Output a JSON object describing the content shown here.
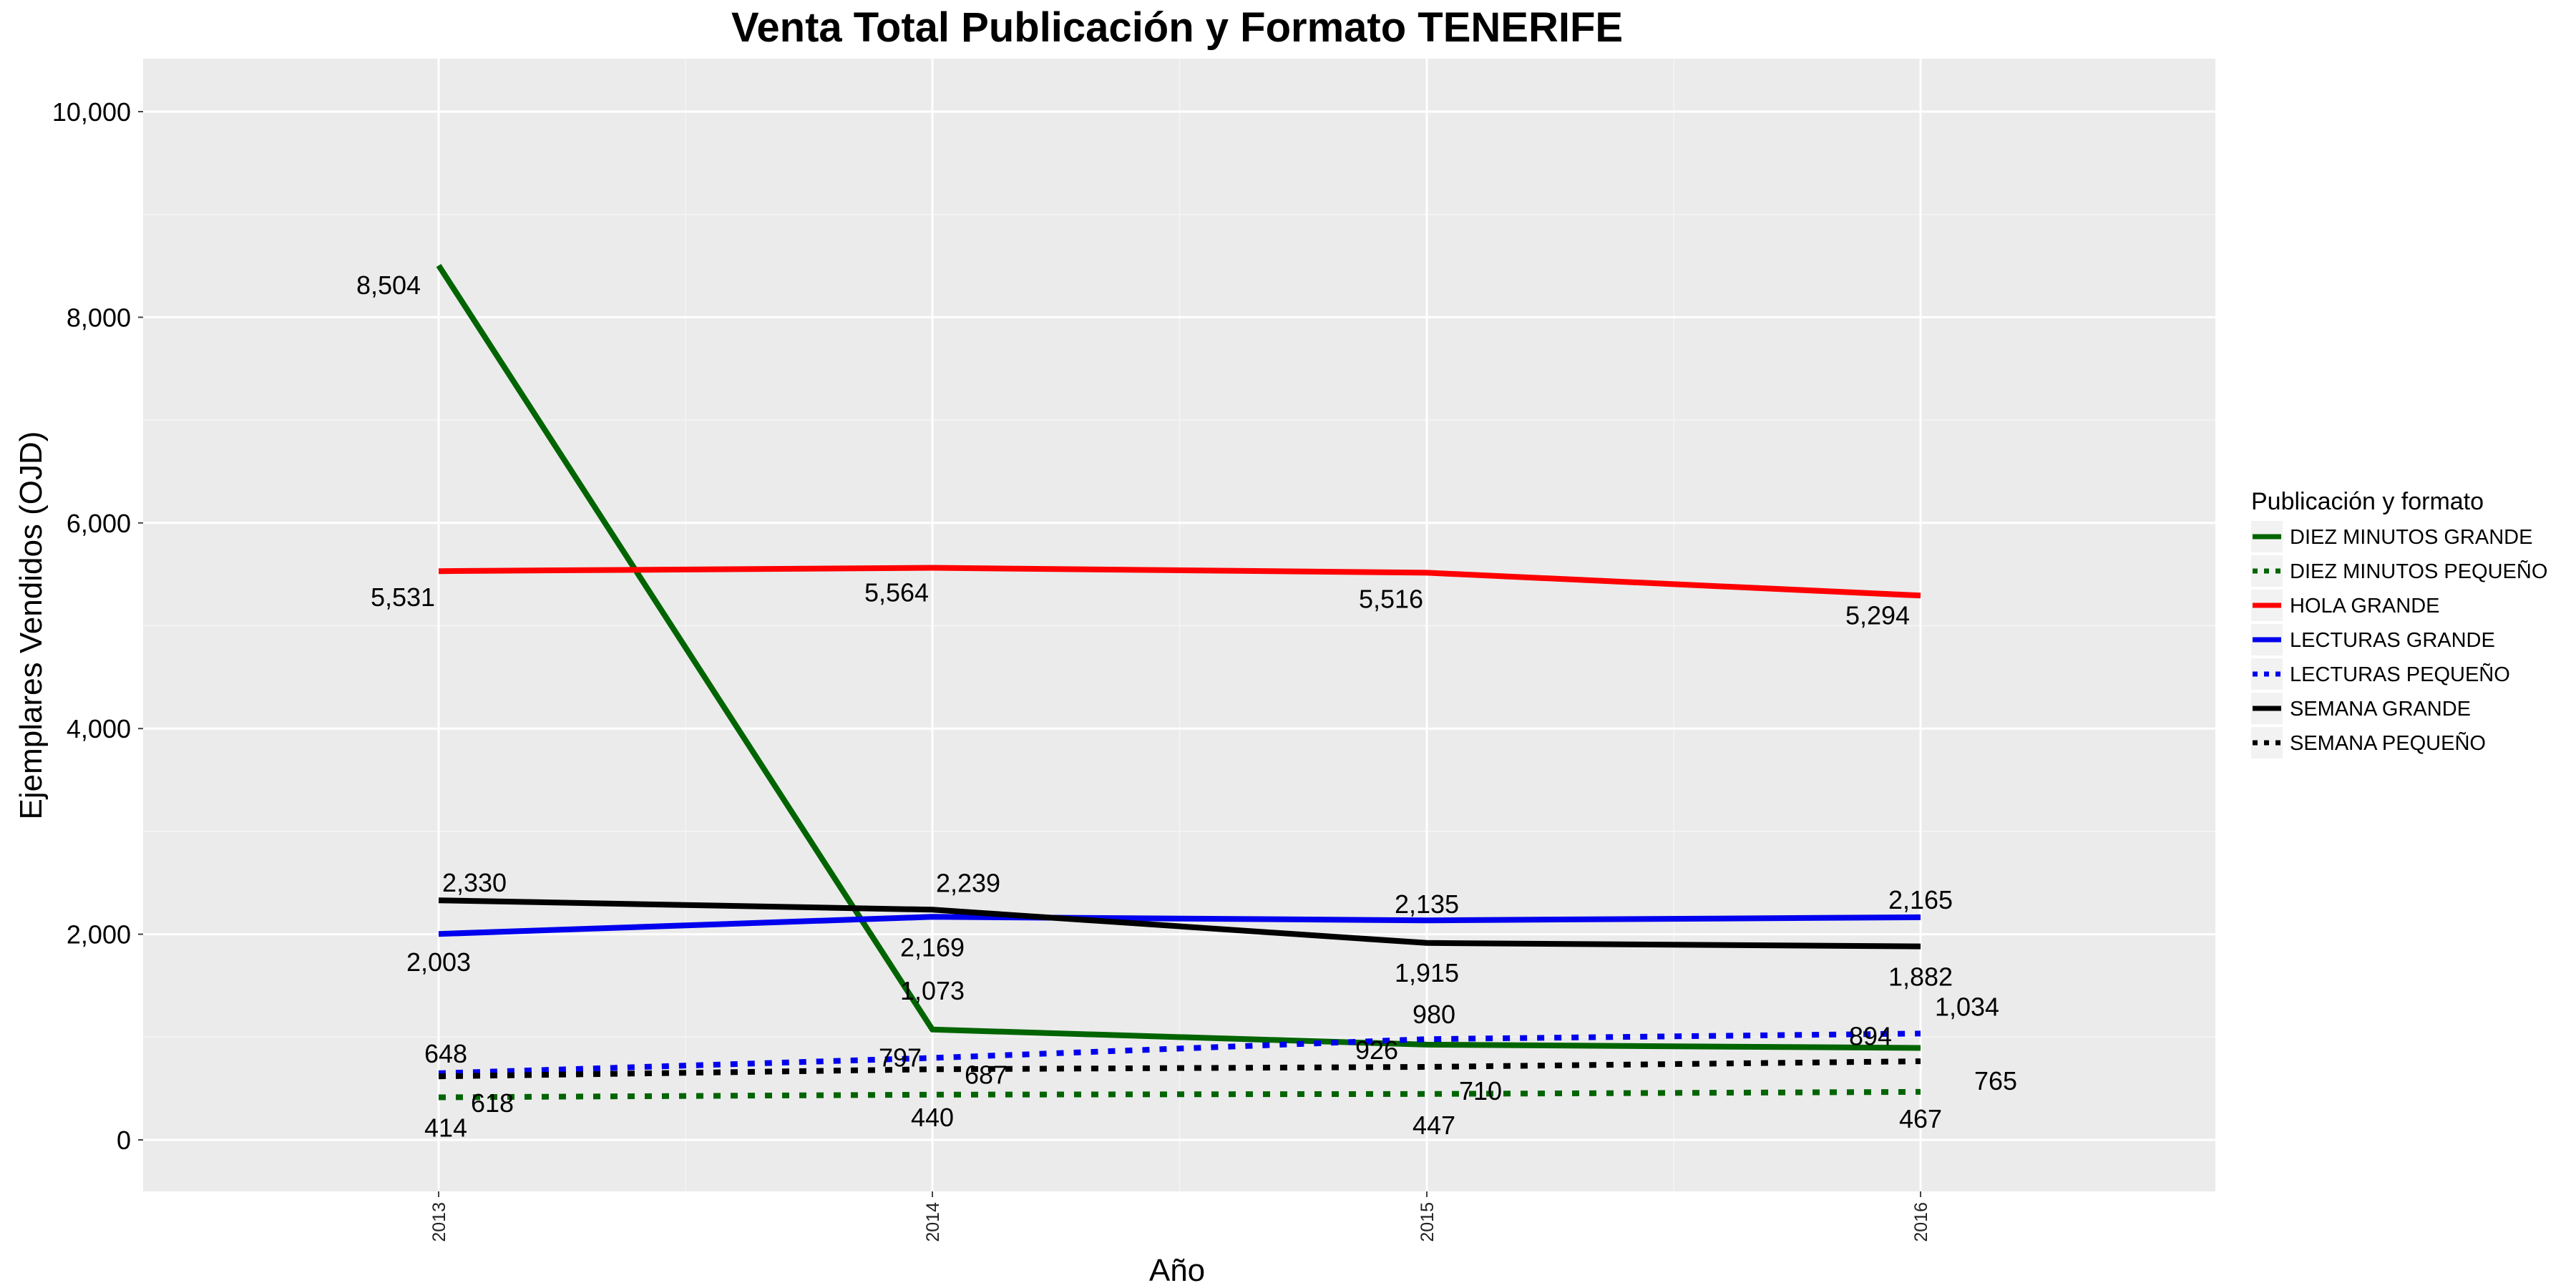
{
  "chart_data": {
    "type": "line",
    "title": "Venta Total Publicación y Formato  TENERIFE",
    "xlabel": "Año",
    "ylabel": "Ejemplares Vendidos (OJD)",
    "x": [
      "2013",
      "2014",
      "2015",
      "2016"
    ],
    "ylim": [
      -500,
      10500
    ],
    "yticks": [
      0,
      2000,
      4000,
      6000,
      8000,
      10000
    ],
    "ytick_labels": [
      "0",
      "2,000",
      "4,000",
      "6,000",
      "8,000",
      "10,000"
    ],
    "grid": true,
    "background": "#ebebeb",
    "legend": {
      "title": "Publicación y formato",
      "position": "right"
    },
    "series": [
      {
        "name": "DIEZ MINUTOS GRANDE",
        "color": "#006400",
        "dash": "solid",
        "values": [
          8504,
          1073,
          926,
          894
        ],
        "labels": [
          "8,504",
          "1,073",
          "926",
          "894"
        ]
      },
      {
        "name": "DIEZ MINUTOS PEQUEÑO",
        "color": "#006400",
        "dash": "dotted",
        "values": [
          414,
          440,
          447,
          467
        ],
        "labels": [
          "414",
          "440",
          "447",
          "467"
        ]
      },
      {
        "name": "HOLA GRANDE",
        "color": "#ff0000",
        "dash": "solid",
        "values": [
          5531,
          5564,
          5516,
          5294
        ],
        "labels": [
          "5,531",
          "5,564",
          "5,516",
          "5,294"
        ]
      },
      {
        "name": "LECTURAS GRANDE",
        "color": "#0000ee",
        "dash": "solid",
        "values": [
          2003,
          2169,
          2135,
          2165
        ],
        "labels": [
          "2,003",
          "2,169",
          "2,135",
          "2,165"
        ]
      },
      {
        "name": "LECTURAS PEQUEÑO",
        "color": "#0000ee",
        "dash": "dotted",
        "values": [
          648,
          797,
          980,
          1034
        ],
        "labels": [
          "648",
          "797",
          "980",
          "1,034"
        ]
      },
      {
        "name": "SEMANA GRANDE",
        "color": "#000000",
        "dash": "solid",
        "values": [
          2330,
          2239,
          1915,
          1882
        ],
        "labels": [
          "2,330",
          "2,239",
          "1,915",
          "1,882"
        ]
      },
      {
        "name": "SEMANA PEQUEÑO",
        "color": "#000000",
        "dash": "dotted",
        "values": [
          618,
          687,
          710,
          765
        ],
        "labels": [
          "618",
          "687",
          "710",
          "765"
        ]
      }
    ]
  }
}
